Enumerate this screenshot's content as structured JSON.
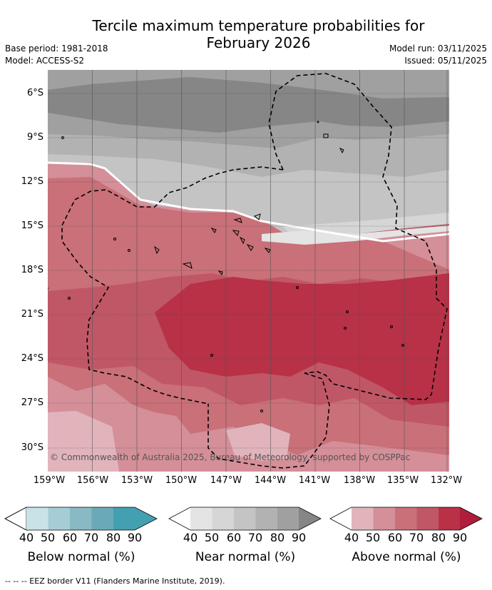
{
  "title_line1": "Tercile maximum temperature probabilities for",
  "title_line2": "February 2026",
  "base_period": "Base period: 1981-2018",
  "model": "Model: ACCESS-S2",
  "model_run": "Model run: 03/11/2025",
  "issued": "Issued: 05/11/2025",
  "map": {
    "lat_labels": [
      "6°S",
      "9°S",
      "12°S",
      "15°S",
      "18°S",
      "21°S",
      "24°S",
      "27°S",
      "30°S"
    ],
    "lon_labels": [
      "159°W",
      "156°W",
      "153°W",
      "150°W",
      "147°W",
      "144°W",
      "141°W",
      "138°W",
      "135°W",
      "132°W"
    ],
    "copyright": "© Commonwealth of Australia 2025, Bureau of Meteorology, supported by COSPPac"
  },
  "legends": [
    {
      "title": "Below normal (%)",
      "ticks": [
        "40",
        "50",
        "60",
        "70",
        "80",
        "90"
      ],
      "colors": [
        "#ffffff",
        "#c8e2e8",
        "#a6cdd5",
        "#88b9c4",
        "#6aaab8",
        "#43a0b0"
      ]
    },
    {
      "title": "Near normal (%)",
      "ticks": [
        "40",
        "50",
        "60",
        "70",
        "80",
        "90"
      ],
      "colors": [
        "#ffffff",
        "#e4e4e4",
        "#d6d6d6",
        "#c4c4c4",
        "#b2b2b2",
        "#a0a0a0",
        "#868686"
      ]
    },
    {
      "title": "Above normal (%)",
      "ticks": [
        "40",
        "50",
        "60",
        "70",
        "80",
        "90"
      ],
      "colors": [
        "#ffffff",
        "#e1b4bc",
        "#d48f99",
        "#c97078",
        "#c05766",
        "#b83146"
      ]
    }
  ],
  "palette": {
    "near_50": "#e4e4e4",
    "near_60": "#d6d6d6",
    "near_70": "#c4c4c4",
    "near_80": "#a0a0a0",
    "near_90": "#868686",
    "above_50": "#e1b4bc",
    "above_60": "#d48f99",
    "above_70": "#c97078",
    "above_80": "#c05766",
    "above_90": "#b83146"
  },
  "footer": "-- -- -- EEZ border V11 (Flanders Marine Institute, 2019)."
}
